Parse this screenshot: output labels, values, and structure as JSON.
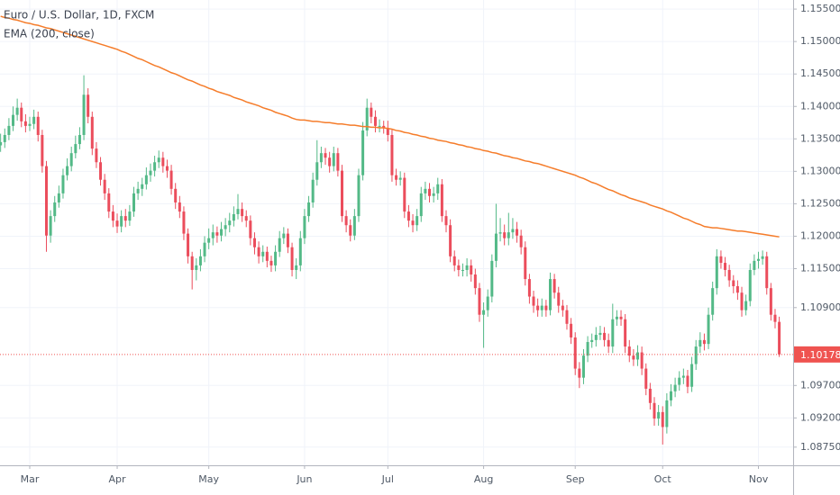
{
  "chart_data": {
    "type": "candlestick",
    "title": "Euro / U.S. Dollar, 1D, FXCM",
    "categories": [
      null,
      null,
      null,
      null,
      null,
      null,
      null,
      "Mar",
      null,
      null,
      null,
      null,
      null,
      null,
      null,
      null,
      null,
      null,
      null,
      null,
      null,
      null,
      null,
      null,
      null,
      null,
      null,
      null,
      "Apr",
      null,
      null,
      null,
      null,
      null,
      null,
      null,
      null,
      null,
      null,
      null,
      null,
      null,
      null,
      null,
      null,
      null,
      null,
      null,
      null,
      null,
      "May",
      null,
      null,
      null,
      null,
      null,
      null,
      null,
      null,
      null,
      null,
      null,
      null,
      null,
      null,
      null,
      null,
      null,
      null,
      null,
      null,
      null,
      null,
      "Jun",
      null,
      null,
      null,
      null,
      null,
      null,
      null,
      null,
      null,
      null,
      null,
      null,
      null,
      null,
      null,
      null,
      null,
      null,
      null,
      "Jul",
      null,
      null,
      null,
      null,
      null,
      null,
      null,
      null,
      null,
      null,
      null,
      null,
      null,
      null,
      null,
      null,
      null,
      null,
      null,
      null,
      null,
      null,
      "Aug",
      null,
      null,
      null,
      null,
      null,
      null,
      null,
      null,
      null,
      null,
      null,
      null,
      null,
      null,
      null,
      null,
      null,
      null,
      null,
      null,
      null,
      "Sep",
      null,
      null,
      null,
      null,
      null,
      null,
      null,
      null,
      null,
      null,
      null,
      null,
      null,
      null,
      null,
      null,
      null,
      null,
      null,
      null,
      "Oct",
      null,
      null,
      null,
      null,
      null,
      null,
      null,
      null,
      null,
      null,
      null,
      null,
      null,
      null,
      null,
      null,
      null,
      null,
      null,
      null,
      null,
      null,
      "Nov",
      null,
      null,
      null,
      null,
      null
    ],
    "open": [
      1.134,
      1.1345,
      1.1356,
      1.137,
      1.1387,
      1.1398,
      1.1377,
      1.137,
      1.1373,
      1.1384,
      1.1356,
      1.1308,
      1.1201,
      1.1231,
      1.1252,
      1.1266,
      1.1294,
      1.1308,
      1.1328,
      1.1342,
      1.1356,
      1.1418,
      1.1384,
      1.1335,
      1.1314,
      1.1287,
      1.1266,
      1.1238,
      1.1224,
      1.1215,
      1.1231,
      1.1224,
      1.1238,
      1.1266,
      1.1273,
      1.128,
      1.1294,
      1.1301,
      1.1314,
      1.1321,
      1.1308,
      1.1301,
      1.1273,
      1.1252,
      1.1238,
      1.1204,
      1.1169,
      1.1148,
      1.1155,
      1.1169,
      1.119,
      1.1197,
      1.1206,
      1.1201,
      1.1211,
      1.1217,
      1.1224,
      1.1234,
      1.1242,
      1.1231,
      1.1224,
      1.1197,
      1.1183,
      1.1169,
      1.1176,
      1.1162,
      1.1155,
      1.1176,
      1.1197,
      1.1204,
      1.1183,
      1.1148,
      1.1155,
      1.1197,
      1.1231,
      1.1252,
      1.1287,
      1.1314,
      1.1328,
      1.1321,
      1.1308,
      1.1328,
      1.1301,
      1.1231,
      1.1217,
      1.1201,
      1.1231,
      1.1294,
      1.1363,
      1.1398,
      1.1384,
      1.137,
      1.137,
      1.1367,
      1.1356,
      1.1294,
      1.1287,
      1.129,
      1.1238,
      1.1224,
      1.1217,
      1.1231,
      1.1266,
      1.1273,
      1.1262,
      1.1266,
      1.128,
      1.1231,
      1.1217,
      1.1169,
      1.1155,
      1.1148,
      1.1148,
      1.1155,
      1.1141,
      1.112,
      1.1079,
      1.1086,
      1.1107,
      1.1162,
      1.1204,
      1.1206,
      1.1197,
      1.1206,
      1.1211,
      1.1201,
      1.1183,
      1.1134,
      1.1107,
      1.1093,
      1.1086,
      1.1093,
      1.1086,
      1.1134,
      1.1113,
      1.1093,
      1.1086,
      1.1065,
      1.1044,
      1.0996,
      1.0982,
      1.1016,
      1.1037,
      1.104,
      1.1048,
      1.1051,
      1.104,
      1.103,
      1.1072,
      1.1076,
      1.1072,
      1.103,
      1.1016,
      1.101,
      1.1021,
      1.0996,
      1.0965,
      1.0943,
      1.0919,
      1.0929,
      1.0906,
      1.0947,
      1.0961,
      1.0971,
      1.0982,
      1.0985,
      1.0968,
      1.1003,
      1.103,
      1.104,
      1.1034,
      1.1079,
      1.112,
      1.1169,
      1.1159,
      1.1148,
      1.1132,
      1.1123,
      1.1113,
      1.1086,
      1.11,
      1.1148,
      1.1162,
      1.1165,
      1.1169,
      1.112,
      1.1079,
      1.1068
    ],
    "high": [
      1.1358,
      1.1366,
      1.1382,
      1.14,
      1.1412,
      1.1406,
      1.1388,
      1.1384,
      1.1395,
      1.1392,
      1.1364,
      1.1316,
      1.124,
      1.1262,
      1.1278,
      1.1304,
      1.132,
      1.1338,
      1.1355,
      1.1368,
      1.1448,
      1.1428,
      1.1392,
      1.1345,
      1.1322,
      1.1296,
      1.1274,
      1.1248,
      1.1235,
      1.124,
      1.1242,
      1.1248,
      1.1276,
      1.1284,
      1.129,
      1.1306,
      1.1312,
      1.1324,
      1.1332,
      1.133,
      1.1318,
      1.131,
      1.1282,
      1.1262,
      1.1246,
      1.1212,
      1.1176,
      1.1166,
      1.118,
      1.12,
      1.1212,
      1.1218,
      1.1215,
      1.1222,
      1.1228,
      1.1236,
      1.1246,
      1.1265,
      1.1252,
      1.124,
      1.1232,
      1.1206,
      1.1192,
      1.1186,
      1.1184,
      1.117,
      1.1186,
      1.1208,
      1.1214,
      1.1212,
      1.119,
      1.1166,
      1.1208,
      1.1242,
      1.1262,
      1.1298,
      1.1348,
      1.1338,
      1.1336,
      1.133,
      1.1338,
      1.1336,
      1.131,
      1.124,
      1.1226,
      1.1242,
      1.1304,
      1.1376,
      1.1412,
      1.1406,
      1.1394,
      1.138,
      1.1378,
      1.1378,
      1.1364,
      1.1304,
      1.13,
      1.1298,
      1.1248,
      1.1234,
      1.1242,
      1.1276,
      1.1284,
      1.1282,
      1.1276,
      1.129,
      1.1288,
      1.124,
      1.1226,
      1.1178,
      1.1164,
      1.1158,
      1.1166,
      1.1164,
      1.115,
      1.1128,
      1.1098,
      1.1118,
      1.1172,
      1.125,
      1.1228,
      1.1218,
      1.1236,
      1.1228,
      1.1222,
      1.121,
      1.1192,
      1.1142,
      1.1116,
      1.1104,
      1.1104,
      1.1102,
      1.1144,
      1.1142,
      1.1122,
      1.1102,
      1.1094,
      1.1074,
      1.1052,
      1.1006,
      1.1026,
      1.1046,
      1.105,
      1.106,
      1.1062,
      1.106,
      1.105,
      1.1096,
      1.1086,
      1.1086,
      1.108,
      1.104,
      1.1026,
      1.1032,
      1.103,
      1.1004,
      1.0974,
      1.0952,
      1.094,
      1.0938,
      1.0958,
      1.0972,
      1.0982,
      1.0992,
      1.0996,
      1.0994,
      1.1014,
      1.104,
      1.1052,
      1.105,
      1.109,
      1.113,
      1.118,
      1.1178,
      1.1168,
      1.1156,
      1.114,
      1.1132,
      1.1122,
      1.111,
      1.1158,
      1.1172,
      1.1176,
      1.1178,
      1.1176,
      1.1128,
      1.1088,
      1.1076
    ],
    "low": [
      1.133,
      1.1336,
      1.1348,
      1.1362,
      1.1378,
      1.1368,
      1.136,
      1.1362,
      1.1365,
      1.1346,
      1.1298,
      1.1176,
      1.119,
      1.1222,
      1.1244,
      1.1258,
      1.1286,
      1.13,
      1.132,
      1.1334,
      1.1348,
      1.1374,
      1.1325,
      1.1305,
      1.1278,
      1.1256,
      1.1228,
      1.1214,
      1.1205,
      1.1206,
      1.1214,
      1.1216,
      1.123,
      1.1256,
      1.1262,
      1.1272,
      1.1284,
      1.1292,
      1.1305,
      1.1298,
      1.129,
      1.1264,
      1.1242,
      1.1228,
      1.1194,
      1.1158,
      1.1118,
      1.1132,
      1.1146,
      1.116,
      1.118,
      1.1186,
      1.119,
      1.1192,
      1.12,
      1.1206,
      1.1215,
      1.1226,
      1.1222,
      1.1214,
      1.1186,
      1.1172,
      1.1158,
      1.116,
      1.1152,
      1.1145,
      1.1146,
      1.1168,
      1.1188,
      1.1174,
      1.1138,
      1.1134,
      1.1146,
      1.1188,
      1.1222,
      1.1244,
      1.1278,
      1.1305,
      1.131,
      1.1298,
      1.13,
      1.1292,
      1.1222,
      1.1206,
      1.1192,
      1.1194,
      1.1222,
      1.1286,
      1.1354,
      1.1374,
      1.136,
      1.136,
      1.1358,
      1.1346,
      1.1284,
      1.1278,
      1.1278,
      1.1228,
      1.1214,
      1.1206,
      1.1208,
      1.1222,
      1.1256,
      1.1252,
      1.1252,
      1.1256,
      1.1222,
      1.1206,
      1.116,
      1.1146,
      1.1138,
      1.1138,
      1.1138,
      1.113,
      1.111,
      1.1068,
      1.1028,
      1.1076,
      1.1098,
      1.1152,
      1.1192,
      1.1186,
      1.1186,
      1.1196,
      1.119,
      1.1172,
      1.1124,
      1.1096,
      1.1082,
      1.1076,
      1.1076,
      1.1076,
      1.1078,
      1.1104,
      1.1082,
      1.1076,
      1.1056,
      1.1034,
      1.0986,
      1.0966,
      1.0972,
      1.1006,
      1.1028,
      1.103,
      1.104,
      1.103,
      1.102,
      1.102,
      1.1062,
      1.1062,
      1.102,
      1.1006,
      1.1,
      1.1,
      1.0986,
      1.0955,
      1.0933,
      1.0908,
      1.0908,
      1.0879,
      1.0896,
      1.0938,
      1.0952,
      1.0962,
      1.0972,
      1.0958,
      1.096,
      1.0994,
      1.102,
      1.1024,
      1.1026,
      1.107,
      1.111,
      1.115,
      1.1138,
      1.1122,
      1.1112,
      1.1102,
      1.1076,
      1.1078,
      1.1092,
      1.114,
      1.115,
      1.1156,
      1.111,
      1.107,
      1.1058,
      1.1014
    ],
    "close": [
      1.1345,
      1.1356,
      1.137,
      1.1387,
      1.1398,
      1.1377,
      1.137,
      1.1373,
      1.1384,
      1.1356,
      1.1308,
      1.1201,
      1.1231,
      1.1252,
      1.1266,
      1.1294,
      1.1308,
      1.1328,
      1.1342,
      1.1356,
      1.1418,
      1.1384,
      1.1335,
      1.1314,
      1.1287,
      1.1266,
      1.1238,
      1.1224,
      1.1215,
      1.1231,
      1.1224,
      1.1238,
      1.1266,
      1.1273,
      1.128,
      1.1294,
      1.1301,
      1.1314,
      1.1321,
      1.1308,
      1.1301,
      1.1273,
      1.1252,
      1.1238,
      1.1204,
      1.1169,
      1.1148,
      1.1155,
      1.1169,
      1.119,
      1.1197,
      1.1206,
      1.1201,
      1.1211,
      1.1217,
      1.1224,
      1.1234,
      1.1242,
      1.1231,
      1.1224,
      1.1197,
      1.1183,
      1.1169,
      1.1176,
      1.1162,
      1.1155,
      1.1176,
      1.1197,
      1.1204,
      1.1183,
      1.1148,
      1.1155,
      1.1197,
      1.1231,
      1.1252,
      1.1287,
      1.1314,
      1.1328,
      1.1321,
      1.1308,
      1.1328,
      1.1301,
      1.1231,
      1.1217,
      1.1201,
      1.1231,
      1.1294,
      1.1363,
      1.1398,
      1.1384,
      1.137,
      1.137,
      1.1367,
      1.1356,
      1.1294,
      1.1287,
      1.129,
      1.1238,
      1.1224,
      1.1217,
      1.1231,
      1.1266,
      1.1273,
      1.1262,
      1.1266,
      1.128,
      1.1231,
      1.1217,
      1.1169,
      1.1155,
      1.1148,
      1.1148,
      1.1155,
      1.1141,
      1.112,
      1.1079,
      1.1086,
      1.1107,
      1.1162,
      1.1204,
      1.1206,
      1.1197,
      1.1206,
      1.1211,
      1.1201,
      1.1183,
      1.1134,
      1.1107,
      1.1093,
      1.1086,
      1.1093,
      1.1086,
      1.1134,
      1.1113,
      1.1093,
      1.1086,
      1.1065,
      1.1044,
      1.0996,
      1.0982,
      1.1016,
      1.1037,
      1.104,
      1.1048,
      1.1051,
      1.104,
      1.103,
      1.1072,
      1.1076,
      1.1072,
      1.103,
      1.1016,
      1.101,
      1.1021,
      1.0996,
      1.0965,
      1.0943,
      1.0919,
      1.0929,
      1.0906,
      1.0947,
      1.0961,
      1.0971,
      1.0982,
      1.0985,
      1.0968,
      1.1003,
      1.103,
      1.104,
      1.1034,
      1.1079,
      1.112,
      1.1169,
      1.1159,
      1.1148,
      1.1132,
      1.1123,
      1.1113,
      1.1086,
      1.11,
      1.1148,
      1.1162,
      1.1165,
      1.1169,
      1.112,
      1.1079,
      1.1068,
      1.10178
    ],
    "up_color": "#53b987",
    "down_color": "#eb4d5c",
    "overlays": [
      {
        "type": "line",
        "name": "EMA (200, close)",
        "color": "#f57c2a",
        "values": [
          1.1539,
          1.1537,
          1.1536,
          1.1534,
          1.1533,
          1.1531,
          1.1529,
          1.1528,
          1.1526,
          1.1525,
          1.1523,
          1.1521,
          1.152,
          1.1518,
          1.1516,
          1.1514,
          1.1512,
          1.151,
          1.1508,
          1.1506,
          1.1504,
          1.1502,
          1.15,
          1.1498,
          1.1496,
          1.1494,
          1.1492,
          1.149,
          1.1488,
          1.1485,
          1.1483,
          1.148,
          1.1477,
          1.1474,
          1.1472,
          1.1469,
          1.1466,
          1.1463,
          1.1461,
          1.1458,
          1.1455,
          1.1452,
          1.145,
          1.1447,
          1.1444,
          1.1441,
          1.1439,
          1.1436,
          1.1433,
          1.1431,
          1.1428,
          1.1426,
          1.1423,
          1.1421,
          1.1419,
          1.1417,
          1.1414,
          1.1412,
          1.141,
          1.1407,
          1.1405,
          1.1403,
          1.1401,
          1.1398,
          1.1396,
          1.1394,
          1.1391,
          1.1389,
          1.1387,
          1.1385,
          1.1382,
          1.138,
          1.1379,
          1.1379,
          1.1378,
          1.1377,
          1.1377,
          1.1376,
          1.1375,
          1.1375,
          1.1374,
          1.1373,
          1.1373,
          1.1372,
          1.1371,
          1.1371,
          1.137,
          1.1369,
          1.1369,
          1.1368,
          1.1368,
          1.1367,
          1.1367,
          1.1366,
          1.1365,
          1.1363,
          1.1362,
          1.136,
          1.1359,
          1.1357,
          1.1356,
          1.1354,
          1.1353,
          1.1351,
          1.135,
          1.1348,
          1.1347,
          1.1346,
          1.1344,
          1.1343,
          1.1341,
          1.134,
          1.1338,
          1.1337,
          1.1335,
          1.1334,
          1.1332,
          1.1331,
          1.1329,
          1.1328,
          1.1326,
          1.1324,
          1.1323,
          1.1321,
          1.132,
          1.1318,
          1.1316,
          1.1315,
          1.1313,
          1.1312,
          1.131,
          1.1308,
          1.1306,
          1.1304,
          1.1302,
          1.13,
          1.1298,
          1.1296,
          1.1294,
          1.1291,
          1.1289,
          1.1286,
          1.1283,
          1.1281,
          1.1278,
          1.1275,
          1.1272,
          1.127,
          1.1267,
          1.1264,
          1.1262,
          1.1259,
          1.1257,
          1.1255,
          1.1253,
          1.1251,
          1.1248,
          1.1246,
          1.1244,
          1.1242,
          1.1239,
          1.1237,
          1.1234,
          1.1231,
          1.1228,
          1.1226,
          1.1223,
          1.122,
          1.1218,
          1.1215,
          1.1214,
          1.1213,
          1.1213,
          1.1212,
          1.1211,
          1.121,
          1.1209,
          1.1208,
          1.1208,
          1.1207,
          1.1206,
          1.1205,
          1.1204,
          1.1203,
          1.1202,
          1.1201,
          1.12,
          1.1199
        ]
      }
    ],
    "last_price": 1.10178,
    "last_price_color": "#ef5350",
    "ylim": [
      1.0847,
      1.1564
    ],
    "yticks": [
      {
        "value": 1.155,
        "label": "1.15500"
      },
      {
        "value": 1.15,
        "label": "1.15000"
      },
      {
        "value": 1.145,
        "label": "1.14500"
      },
      {
        "value": 1.14,
        "label": "1.14000"
      },
      {
        "value": 1.135,
        "label": "1.13500"
      },
      {
        "value": 1.13,
        "label": "1.13000"
      },
      {
        "value": 1.125,
        "label": "1.12500"
      },
      {
        "value": 1.12,
        "label": "1.12000"
      },
      {
        "value": 1.115,
        "label": "1.11500"
      },
      {
        "value": 1.109,
        "label": "1.10900"
      },
      {
        "value": 1.097,
        "label": "1.09700"
      },
      {
        "value": 1.092,
        "label": "1.09200"
      },
      {
        "value": 1.0875,
        "label": "1.08750"
      }
    ],
    "grid": true
  }
}
